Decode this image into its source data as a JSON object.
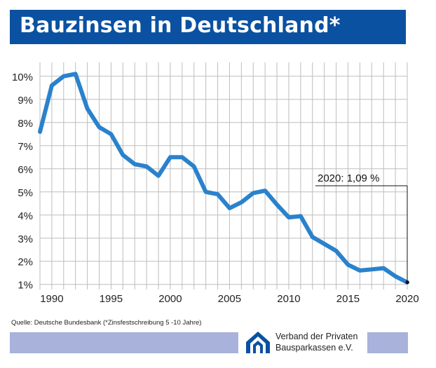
{
  "title": "Bauzinsen in Deutschland*",
  "source": "Quelle: Deutsche Bundesbank (*Zinsfestschreibung 5 -10 Jahre)",
  "organization": {
    "line1": "Verband der Privaten",
    "line2": "Bausparkassen e.V."
  },
  "colors": {
    "title_bg": "#0a51a1",
    "line": "#2a82cc",
    "grid": "#bdbdbd",
    "footer_bg": "#a8b2da"
  },
  "chart_data": {
    "type": "line",
    "title": "Bauzinsen in Deutschland*",
    "xlabel": "",
    "ylabel": "",
    "x_range": [
      1989,
      2020
    ],
    "ylim": [
      1,
      10
    ],
    "y_ticks": [
      1,
      2,
      3,
      4,
      5,
      6,
      7,
      8,
      9,
      10
    ],
    "y_tick_labels": [
      "1%",
      "2%",
      "3%",
      "4%",
      "5%",
      "6%",
      "7%",
      "8%",
      "9%",
      "10%"
    ],
    "x_ticks": [
      1990,
      1995,
      2000,
      2005,
      2010,
      2015,
      2020
    ],
    "x_tick_labels": [
      "1990",
      "1995",
      "2000",
      "2005",
      "2010",
      "2015",
      "2020"
    ],
    "grid": true,
    "series": [
      {
        "name": "Bauzinsen",
        "x": [
          1989,
          1990,
          1991,
          1992,
          1993,
          1994,
          1995,
          1996,
          1997,
          1998,
          1999,
          2000,
          2001,
          2002,
          2003,
          2004,
          2005,
          2006,
          2007,
          2008,
          2009,
          2010,
          2011,
          2012,
          2013,
          2014,
          2015,
          2016,
          2017,
          2018,
          2019,
          2020
        ],
        "values": [
          7.6,
          9.6,
          10.0,
          10.1,
          8.6,
          7.8,
          7.5,
          6.6,
          6.2,
          6.1,
          5.7,
          6.5,
          6.5,
          6.1,
          5.0,
          4.9,
          4.3,
          4.55,
          4.95,
          5.05,
          4.45,
          3.9,
          3.95,
          3.05,
          2.75,
          2.45,
          1.85,
          1.6,
          1.65,
          1.7,
          1.35,
          1.09
        ]
      }
    ],
    "annotation": {
      "text": "2020: 1,09 %",
      "x": 2020,
      "y": 1.09
    }
  }
}
